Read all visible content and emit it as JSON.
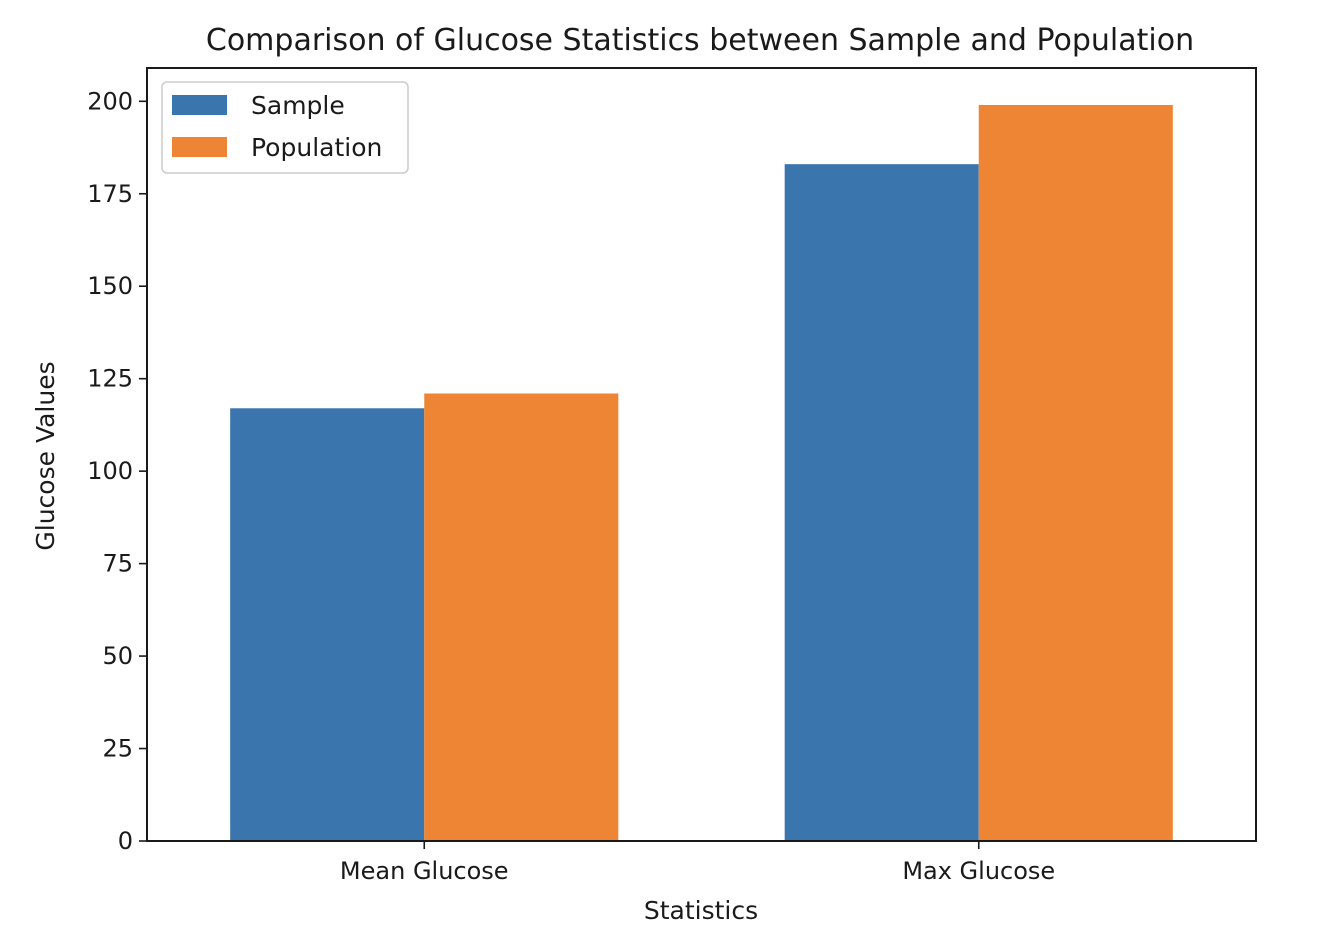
{
  "chart_data": {
    "type": "bar",
    "title": "Comparison of Glucose Statistics between Sample and Population",
    "xlabel": "Statistics",
    "ylabel": "Glucose Values",
    "categories": [
      "Mean Glucose",
      "Max Glucose"
    ],
    "series": [
      {
        "name": "Sample",
        "values": [
          117,
          183
        ],
        "color": "#3a75ad"
      },
      {
        "name": "Population",
        "values": [
          121,
          199
        ],
        "color": "#ee8535"
      }
    ],
    "ylim": [
      0,
      209
    ],
    "yticks": [
      0,
      25,
      50,
      75,
      100,
      125,
      150,
      175,
      200
    ],
    "grid": false,
    "legend_position": "upper-left"
  }
}
